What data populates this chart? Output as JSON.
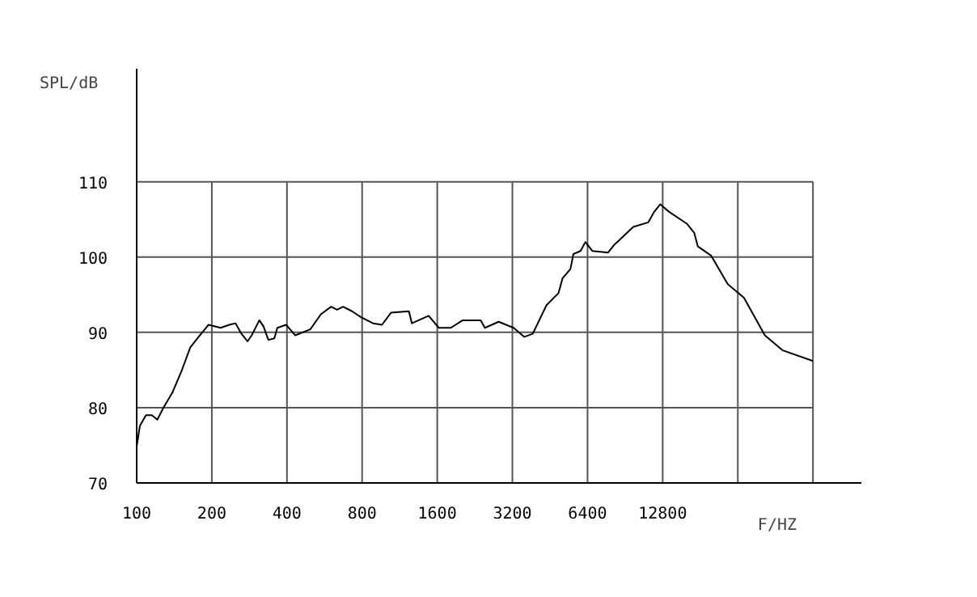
{
  "chart_data": {
    "type": "line",
    "ylabel": "SPL/dB",
    "xlabel": "F/HZ",
    "log": "x",
    "grid": true,
    "marker": "none",
    "line_style": "solid",
    "xlim": [
      100,
      80000
    ],
    "ylim": [
      70,
      125
    ],
    "xticks": [
      100,
      200,
      400,
      800,
      1600,
      3200,
      6400,
      12800,
      {
        "value": 25600,
        "label": null
      },
      {
        "value": 51200,
        "label": null
      }
    ],
    "yticks": [
      70,
      80,
      90,
      100,
      110
    ],
    "series": [
      {
        "color": "#000000",
        "x": [
          100,
          103,
          109,
          115,
          121,
          128,
          139,
          151,
          164,
          179,
          194,
          217,
          235,
          249,
          263,
          278,
          289,
          310,
          322,
          337,
          356,
          366,
          397,
          432,
          496,
          547,
          601,
          635,
          671,
          729,
          792,
          885,
          961,
          1044,
          1232,
          1266,
          1478,
          1623,
          1813,
          2024,
          2388,
          2483,
          2819,
          3236,
          3573,
          3860,
          4383,
          4894,
          5086,
          5465,
          5618,
          6003,
          6273,
          6697,
          7737,
          8176,
          9757,
          11199,
          11834,
          12510,
          13585,
          16031,
          17130,
          17706,
          19988,
          23329,
          27081,
          32845,
          38762,
          51200
        ],
        "values": [
          74.8,
          77.6,
          79.0,
          79.0,
          78.4,
          80.0,
          82.0,
          84.8,
          88.0,
          89.6,
          91.0,
          90.6,
          91.0,
          91.2,
          89.8,
          88.8,
          89.6,
          91.6,
          90.8,
          89.0,
          89.2,
          90.6,
          91.0,
          89.6,
          90.4,
          92.4,
          93.4,
          93.0,
          93.4,
          92.8,
          92.0,
          91.2,
          91.0,
          92.6,
          92.8,
          91.2,
          92.2,
          90.6,
          90.6,
          91.6,
          91.6,
          90.6,
          91.4,
          90.6,
          89.4,
          89.8,
          93.6,
          95.2,
          97.2,
          98.4,
          100.4,
          100.8,
          102.0,
          100.8,
          100.6,
          101.6,
          104.0,
          104.6,
          106.0,
          107.0,
          106.0,
          104.4,
          103.2,
          101.4,
          100.2,
          96.4,
          94.6,
          89.6,
          87.6,
          86.2
        ]
      }
    ]
  }
}
